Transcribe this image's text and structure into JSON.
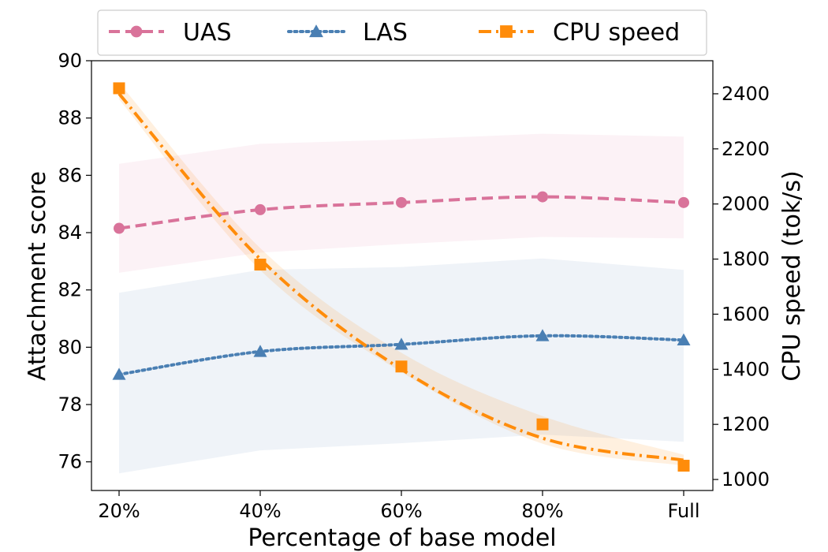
{
  "chart_data": {
    "type": "line",
    "categories": [
      "20%",
      "40%",
      "60%",
      "80%",
      "Full"
    ],
    "xlabel": "Percentage of base model",
    "ylabel": "Attachment score",
    "y2label": "CPU speed (tok/s)",
    "ylim": [
      75,
      90
    ],
    "y2lim": [
      960,
      2520
    ],
    "yticks": [
      76,
      78,
      80,
      82,
      84,
      86,
      88,
      90
    ],
    "y2ticks": [
      1000,
      1200,
      1400,
      1600,
      1800,
      2000,
      2200,
      2400
    ],
    "grid": false,
    "legend_position": "top",
    "series": [
      {
        "name": "UAS",
        "axis": "left",
        "color": "#d9739a",
        "marker": "circle",
        "linestyle": "dashed",
        "values": [
          84.15,
          84.8,
          85.05,
          85.25,
          85.05
        ],
        "band_lower": [
          82.6,
          83.3,
          83.6,
          83.85,
          83.8
        ],
        "band_upper": [
          86.4,
          87.1,
          87.25,
          87.45,
          87.35
        ]
      },
      {
        "name": "LAS",
        "axis": "left",
        "color": "#4a7fb3",
        "marker": "triangle",
        "linestyle": "dotted",
        "values": [
          79.05,
          79.85,
          80.1,
          80.4,
          80.25
        ],
        "band_lower": [
          75.6,
          76.4,
          76.65,
          76.95,
          76.7
        ],
        "band_upper": [
          81.9,
          82.7,
          82.8,
          83.1,
          82.7
        ]
      },
      {
        "name": "CPU speed",
        "axis": "right",
        "color": "#ff8c0a",
        "marker": "square",
        "linestyle": "dashdot",
        "values": [
          2420,
          1780,
          1410,
          1200,
          1050
        ],
        "fit": [
          2400,
          1800,
          1400,
          1150,
          1070
        ],
        "band_lower": [
          2380,
          1760,
          1390,
          1130,
          1050
        ],
        "band_upper": [
          2440,
          1840,
          1460,
          1230,
          1090
        ]
      }
    ]
  }
}
